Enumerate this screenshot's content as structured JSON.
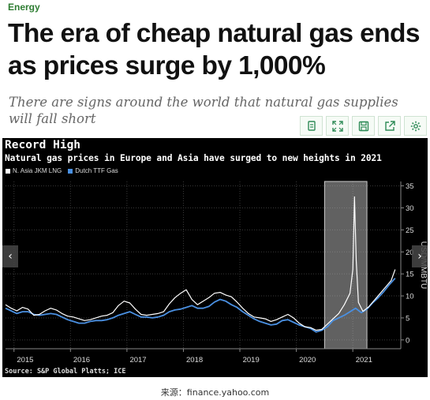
{
  "article": {
    "category": "Energy",
    "headline": "The era of cheap natural gas ends as prices surge by 1,000%",
    "subheadline": "There are signs around the world that natural gas supplies will fall short"
  },
  "toolbar": {
    "buttons": [
      {
        "name": "copy-icon"
      },
      {
        "name": "expand-icon"
      },
      {
        "name": "save-icon"
      },
      {
        "name": "share-icon"
      },
      {
        "name": "gear-icon"
      }
    ]
  },
  "figure": {
    "title": "Record High",
    "subtitle": "Natural gas prices in Europe and Asia have surged to new heights in 2021",
    "source": "Source: S&P Global Platts; ICE",
    "caption": "来源：finance.yahoo.com",
    "prev_label": "‹",
    "next_label": "›"
  },
  "chart_data": {
    "type": "line",
    "title": "Record High",
    "subtitle": "Natural gas prices in Europe and Asia have surged to new heights in 2021",
    "ylabel": "USD/MMBTU",
    "ylim": [
      -2,
      36
    ],
    "yticks": [
      0,
      5,
      10,
      15,
      20,
      25,
      30,
      35
    ],
    "xlim": [
      2014.85,
      2021.85
    ],
    "xticks": [
      "2015",
      "2016",
      "2017",
      "2018",
      "2019",
      "2020",
      "2021"
    ],
    "highlight_region": [
      2020.5,
      2021.25
    ],
    "y_axis_position": "right",
    "legend_position": "top-left",
    "colors": {
      "jkm": "#ffffff",
      "ttf": "#4a90e2",
      "highlight": "#b0b0b0"
    },
    "series": [
      {
        "name": "N. Asia JKM LNG",
        "points": [
          [
            2014.85,
            8.0
          ],
          [
            2014.95,
            7.2
          ],
          [
            2015.05,
            6.6
          ],
          [
            2015.15,
            7.4
          ],
          [
            2015.25,
            7.0
          ],
          [
            2015.35,
            5.6
          ],
          [
            2015.45,
            5.8
          ],
          [
            2015.55,
            6.6
          ],
          [
            2015.65,
            7.2
          ],
          [
            2015.75,
            6.8
          ],
          [
            2015.85,
            6.0
          ],
          [
            2015.95,
            5.4
          ],
          [
            2016.05,
            5.2
          ],
          [
            2016.15,
            4.8
          ],
          [
            2016.25,
            4.4
          ],
          [
            2016.35,
            4.6
          ],
          [
            2016.45,
            5.0
          ],
          [
            2016.55,
            5.4
          ],
          [
            2016.65,
            5.6
          ],
          [
            2016.75,
            6.2
          ],
          [
            2016.85,
            7.8
          ],
          [
            2016.95,
            8.8
          ],
          [
            2017.05,
            8.4
          ],
          [
            2017.15,
            7.0
          ],
          [
            2017.25,
            5.8
          ],
          [
            2017.35,
            5.6
          ],
          [
            2017.45,
            5.8
          ],
          [
            2017.55,
            6.0
          ],
          [
            2017.65,
            6.4
          ],
          [
            2017.75,
            8.2
          ],
          [
            2017.85,
            9.6
          ],
          [
            2017.95,
            10.6
          ],
          [
            2018.05,
            11.4
          ],
          [
            2018.15,
            9.2
          ],
          [
            2018.25,
            8.0
          ],
          [
            2018.35,
            8.8
          ],
          [
            2018.45,
            9.6
          ],
          [
            2018.55,
            10.6
          ],
          [
            2018.65,
            10.8
          ],
          [
            2018.75,
            10.2
          ],
          [
            2018.85,
            9.8
          ],
          [
            2018.95,
            8.6
          ],
          [
            2019.05,
            7.2
          ],
          [
            2019.15,
            6.0
          ],
          [
            2019.25,
            5.2
          ],
          [
            2019.35,
            5.0
          ],
          [
            2019.45,
            4.8
          ],
          [
            2019.55,
            4.2
          ],
          [
            2019.65,
            4.6
          ],
          [
            2019.75,
            5.2
          ],
          [
            2019.85,
            5.8
          ],
          [
            2019.95,
            5.0
          ],
          [
            2020.05,
            3.8
          ],
          [
            2020.15,
            3.0
          ],
          [
            2020.25,
            2.8
          ],
          [
            2020.35,
            2.2
          ],
          [
            2020.45,
            2.4
          ],
          [
            2020.55,
            3.6
          ],
          [
            2020.65,
            4.8
          ],
          [
            2020.75,
            6.0
          ],
          [
            2020.85,
            8.0
          ],
          [
            2020.95,
            10.6
          ],
          [
            2021.0,
            16.0
          ],
          [
            2021.03,
            32.5
          ],
          [
            2021.06,
            18.0
          ],
          [
            2021.1,
            8.5
          ],
          [
            2021.18,
            6.5
          ],
          [
            2021.28,
            7.5
          ],
          [
            2021.38,
            9.0
          ],
          [
            2021.48,
            10.5
          ],
          [
            2021.58,
            12.0
          ],
          [
            2021.68,
            13.5
          ],
          [
            2021.75,
            16.0
          ]
        ]
      },
      {
        "name": "Dutch TTF Gas",
        "points": [
          [
            2014.85,
            7.2
          ],
          [
            2014.95,
            6.6
          ],
          [
            2015.05,
            6.0
          ],
          [
            2015.15,
            6.4
          ],
          [
            2015.25,
            6.4
          ],
          [
            2015.35,
            5.8
          ],
          [
            2015.45,
            5.6
          ],
          [
            2015.55,
            5.8
          ],
          [
            2015.65,
            6.0
          ],
          [
            2015.75,
            5.8
          ],
          [
            2015.85,
            5.2
          ],
          [
            2015.95,
            4.6
          ],
          [
            2016.05,
            4.2
          ],
          [
            2016.15,
            3.8
          ],
          [
            2016.25,
            3.8
          ],
          [
            2016.35,
            4.2
          ],
          [
            2016.45,
            4.4
          ],
          [
            2016.55,
            4.4
          ],
          [
            2016.65,
            4.6
          ],
          [
            2016.75,
            5.0
          ],
          [
            2016.85,
            5.6
          ],
          [
            2016.95,
            6.0
          ],
          [
            2017.05,
            6.4
          ],
          [
            2017.15,
            5.8
          ],
          [
            2017.25,
            5.2
          ],
          [
            2017.35,
            5.2
          ],
          [
            2017.45,
            5.0
          ],
          [
            2017.55,
            5.2
          ],
          [
            2017.65,
            5.6
          ],
          [
            2017.75,
            6.4
          ],
          [
            2017.85,
            6.8
          ],
          [
            2017.95,
            7.0
          ],
          [
            2018.05,
            7.4
          ],
          [
            2018.15,
            7.8
          ],
          [
            2018.25,
            7.2
          ],
          [
            2018.35,
            7.2
          ],
          [
            2018.45,
            7.6
          ],
          [
            2018.55,
            8.6
          ],
          [
            2018.65,
            9.2
          ],
          [
            2018.75,
            8.8
          ],
          [
            2018.85,
            8.0
          ],
          [
            2018.95,
            7.4
          ],
          [
            2019.05,
            6.4
          ],
          [
            2019.15,
            5.6
          ],
          [
            2019.25,
            4.8
          ],
          [
            2019.35,
            4.2
          ],
          [
            2019.45,
            3.8
          ],
          [
            2019.55,
            3.4
          ],
          [
            2019.65,
            3.6
          ],
          [
            2019.75,
            4.4
          ],
          [
            2019.85,
            4.6
          ],
          [
            2019.95,
            4.0
          ],
          [
            2020.05,
            3.4
          ],
          [
            2020.15,
            3.0
          ],
          [
            2020.25,
            2.6
          ],
          [
            2020.35,
            1.8
          ],
          [
            2020.45,
            2.2
          ],
          [
            2020.55,
            3.0
          ],
          [
            2020.65,
            4.4
          ],
          [
            2020.75,
            5.0
          ],
          [
            2020.85,
            5.6
          ],
          [
            2020.95,
            6.4
          ],
          [
            2021.05,
            7.2
          ],
          [
            2021.15,
            6.2
          ],
          [
            2021.25,
            7.0
          ],
          [
            2021.35,
            8.4
          ],
          [
            2021.45,
            9.6
          ],
          [
            2021.55,
            11.0
          ],
          [
            2021.65,
            12.6
          ],
          [
            2021.75,
            14.0
          ]
        ]
      }
    ]
  }
}
